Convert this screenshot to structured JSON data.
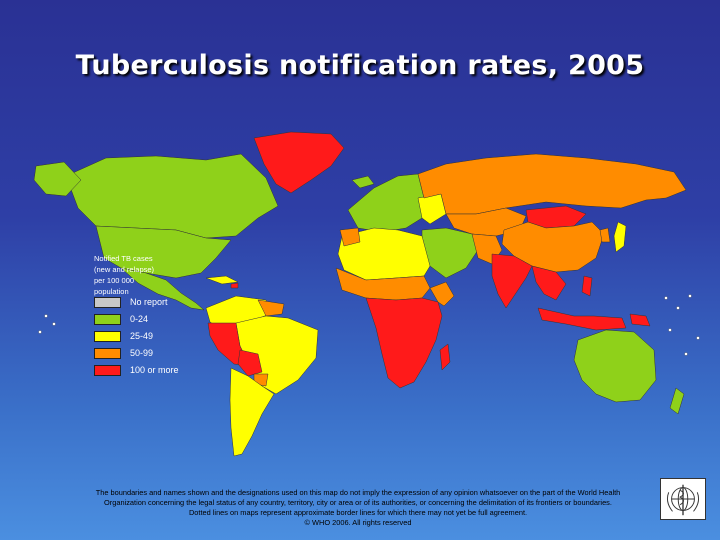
{
  "title": "Tuberculosis notification rates, 2005",
  "legend": {
    "heading": "Notified TB cases\n(new and relapse)\nper 100 000\npopulation",
    "items": [
      {
        "label": "No report",
        "color": "#c8c8c8"
      },
      {
        "label": "0-24",
        "color": "#8fd11a"
      },
      {
        "label": "25-49",
        "color": "#ffff00"
      },
      {
        "label": "50-99",
        "color": "#ff8c00"
      },
      {
        "label": "100 or more",
        "color": "#ff1a1a"
      }
    ]
  },
  "regions": [
    {
      "name": "Greenland",
      "category": "100 or more"
    },
    {
      "name": "Canada",
      "category": "0-24"
    },
    {
      "name": "United States",
      "category": "0-24"
    },
    {
      "name": "Mexico",
      "category": "0-24"
    },
    {
      "name": "Brazil",
      "category": "25-49"
    },
    {
      "name": "Peru",
      "category": "100 or more"
    },
    {
      "name": "Bolivia",
      "category": "100 or more"
    },
    {
      "name": "Argentina",
      "category": "25-49"
    },
    {
      "name": "Europe (West)",
      "category": "0-24"
    },
    {
      "name": "Russian Federation",
      "category": "50-99"
    },
    {
      "name": "Northern Africa",
      "category": "25-49"
    },
    {
      "name": "Sub-Saharan Africa",
      "category": "100 or more"
    },
    {
      "name": "Middle East",
      "category": "0-24"
    },
    {
      "name": "India",
      "category": "100 or more"
    },
    {
      "name": "China",
      "category": "50-99"
    },
    {
      "name": "Mongolia",
      "category": "100 or more"
    },
    {
      "name": "South-East Asia",
      "category": "100 or more"
    },
    {
      "name": "Australia",
      "category": "0-24"
    }
  ],
  "footer": {
    "line1": "The boundaries and names shown and the designations used on this map do not imply the expression of any opinion whatsoever on the part of the World Health",
    "line2": "Organization concerning the legal status of any country, territory, city or area or of its authorities, or concerning the delimitation of its frontiers or boundaries.",
    "line3": "Dotted lines on maps represent approximate border lines for which there may not yet be full agreement.",
    "line4": "© WHO 2006. All rights reserved"
  }
}
